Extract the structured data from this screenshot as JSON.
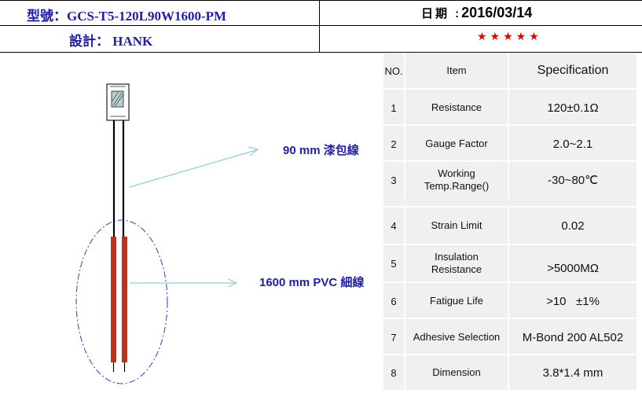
{
  "header": {
    "model_label": "型號：",
    "model_value": "GCS-T5-120L90W1600-PM",
    "designer_label": "設計：",
    "designer_value": "HANK",
    "date_label": "日期 :",
    "date_value": "2016/03/14",
    "rating": "★★★★★"
  },
  "drawing": {
    "enamel_wire_label": "90 mm 漆包線",
    "pvc_wire_label": "1600 mm PVC 細線"
  },
  "spec_table": {
    "headers": {
      "no": "NO.",
      "item": "Item",
      "spec": "Specification"
    },
    "rows": [
      {
        "no": "1",
        "item": "Resistance",
        "spec": "120±0.1Ω"
      },
      {
        "no": "2",
        "item": "Gauge Factor",
        "spec": "2.0~2.1"
      },
      {
        "no": "3",
        "item": "Working Temp.Range()",
        "spec": "-30~80℃"
      },
      {
        "no": "4",
        "item": "Strain Limit",
        "spec": "0.02"
      },
      {
        "no": "5",
        "item": "Insulation Resistance",
        "spec": ">5000MΩ"
      },
      {
        "no": "6",
        "item": "Fatigue Life",
        "spec": ">10   ±1%"
      },
      {
        "no": "7",
        "item": "Adhesive Selection",
        "spec": "M-Bond 200 AL502"
      },
      {
        "no": "8",
        "item": "Dimension",
        "spec": "3.8*1.4 mm"
      }
    ]
  },
  "colors": {
    "title_blue": "#1f1fa6",
    "star_red": "#e00000",
    "table_bg": "#f0f0f0",
    "leader_line": "#8fcfd0",
    "ellipse": "#3b3bbf",
    "pvc_wire": "#c0301a"
  }
}
